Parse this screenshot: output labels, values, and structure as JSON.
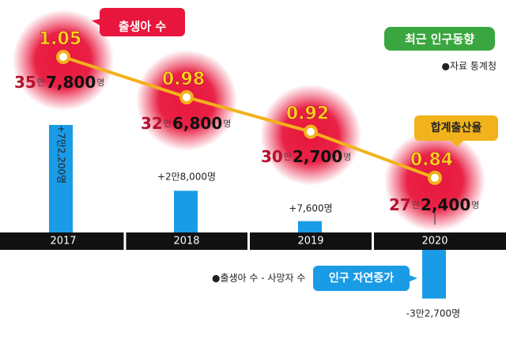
{
  "title": "최근 인구동향",
  "source": "●자료 통계청",
  "births_label": "출생아 수",
  "tfr_label": "합계출산율",
  "natural_label": "인구 자연증가",
  "natural_caption": "●출생아 수 - 사망자 수",
  "births": [
    {
      "man": "35",
      "unit_man": "만",
      "rest": "7,800",
      "unit": "명"
    },
    {
      "man": "32",
      "unit_man": "만",
      "rest": "6,800",
      "unit": "명"
    },
    {
      "man": "30",
      "unit_man": "만",
      "rest": "2,700",
      "unit": "명"
    },
    {
      "man": "27",
      "unit_man": "만",
      "rest": "2,400",
      "unit": "명"
    }
  ],
  "tfr_text": [
    "1.05",
    "0.98",
    "0.92",
    "0.84"
  ],
  "natural_text": [
    "+7만2,200명",
    "+2만8,000명",
    "+7,600명",
    "-3만2,700명"
  ],
  "colors": {
    "accent_red": "#e8163c",
    "line_yellow": "#f2b21b",
    "bar_blue": "#1a9be6",
    "title_green": "#3aa63f",
    "axis_black": "#111111"
  },
  "chart_data": {
    "type": "bar+line",
    "categories": [
      "2017",
      "2018",
      "2019",
      "2020"
    ],
    "series": [
      {
        "name": "인구 자연증가",
        "type": "bar",
        "values": [
          72200,
          28000,
          7600,
          -32700
        ]
      },
      {
        "name": "합계출산율",
        "type": "line",
        "values": [
          1.05,
          0.98,
          0.92,
          0.84
        ]
      },
      {
        "name": "출생아 수",
        "type": "annotation",
        "values": [
          357800,
          326800,
          302700,
          272400
        ]
      }
    ]
  }
}
